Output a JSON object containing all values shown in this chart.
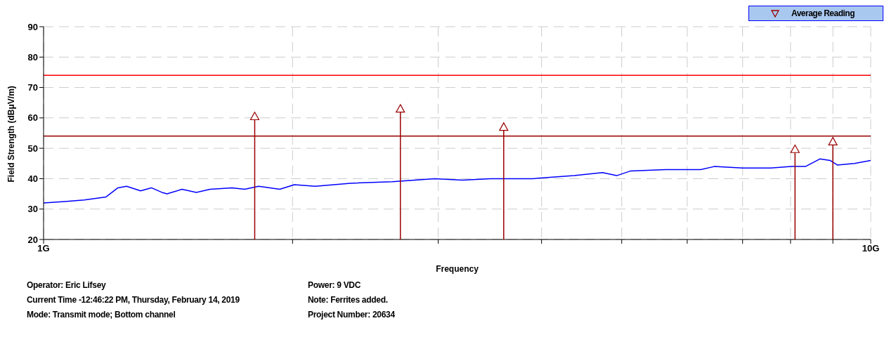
{
  "chart_data": {
    "type": "line",
    "xlabel": "Frequency",
    "ylabel": "Field Strength (dBμV/m)",
    "log": "x",
    "xlim": [
      1,
      10
    ],
    "xticks": [
      {
        "value": 1,
        "label": "1G"
      },
      {
        "value": 2,
        "label": null
      },
      {
        "value": 3,
        "label": null
      },
      {
        "value": 4,
        "label": null
      },
      {
        "value": 5,
        "label": null
      },
      {
        "value": 6,
        "label": null
      },
      {
        "value": 7,
        "label": null
      },
      {
        "value": 8,
        "label": null
      },
      {
        "value": 9,
        "label": null
      },
      {
        "value": 10,
        "label": "10G"
      }
    ],
    "ylim": [
      20,
      90
    ],
    "yticks": [
      20,
      30,
      40,
      50,
      60,
      70,
      80,
      90
    ],
    "grid": true,
    "legend": "top right",
    "series": [
      {
        "color": "#0000ff",
        "x": [
          1.0,
          1.06,
          1.12,
          1.19,
          1.23,
          1.26,
          1.31,
          1.35,
          1.39,
          1.41,
          1.47,
          1.53,
          1.59,
          1.69,
          1.75,
          1.82,
          1.93,
          2.01,
          2.13,
          2.35,
          2.64,
          2.97,
          3.21,
          3.47,
          3.9,
          4.38,
          4.74,
          4.93,
          5.12,
          5.65,
          6.23,
          6.47,
          7.0,
          7.57,
          8.02,
          8.34,
          8.68,
          8.93,
          9.11,
          9.56,
          10.0
        ],
        "values": [
          32,
          32.5,
          33,
          34,
          37,
          37.5,
          36,
          37,
          35.5,
          35,
          36.5,
          35.5,
          36.5,
          37,
          36.5,
          37.5,
          36.5,
          38,
          37.5,
          38.5,
          39,
          40,
          39.5,
          40,
          40,
          41,
          42,
          41,
          42.5,
          43,
          43,
          44,
          43.5,
          43.5,
          44,
          44,
          46.5,
          46,
          44.5,
          45,
          46
        ]
      },
      {
        "type": "lollipop",
        "name": "Average Reading",
        "color": "#990000",
        "marker": "triangle",
        "x": [
          1.8,
          2.7,
          3.6,
          8.1,
          9.0
        ],
        "values": [
          60.5,
          63,
          57,
          49.7,
          52.2
        ]
      }
    ],
    "ref_lines": [
      {
        "axis": "y",
        "value": 74,
        "color": "#ff0000"
      },
      {
        "axis": "y",
        "value": 54,
        "color": "#990000"
      }
    ],
    "annotations": [
      "Operator: Eric Lifsey",
      "Current Time -12:46:22 PM, Thursday, February 14, 2019",
      "Mode: Transmit mode; Bottom channel",
      "Power: 9 VDC",
      "Note: Ferrites added.",
      "Project Number: 20634"
    ]
  }
}
